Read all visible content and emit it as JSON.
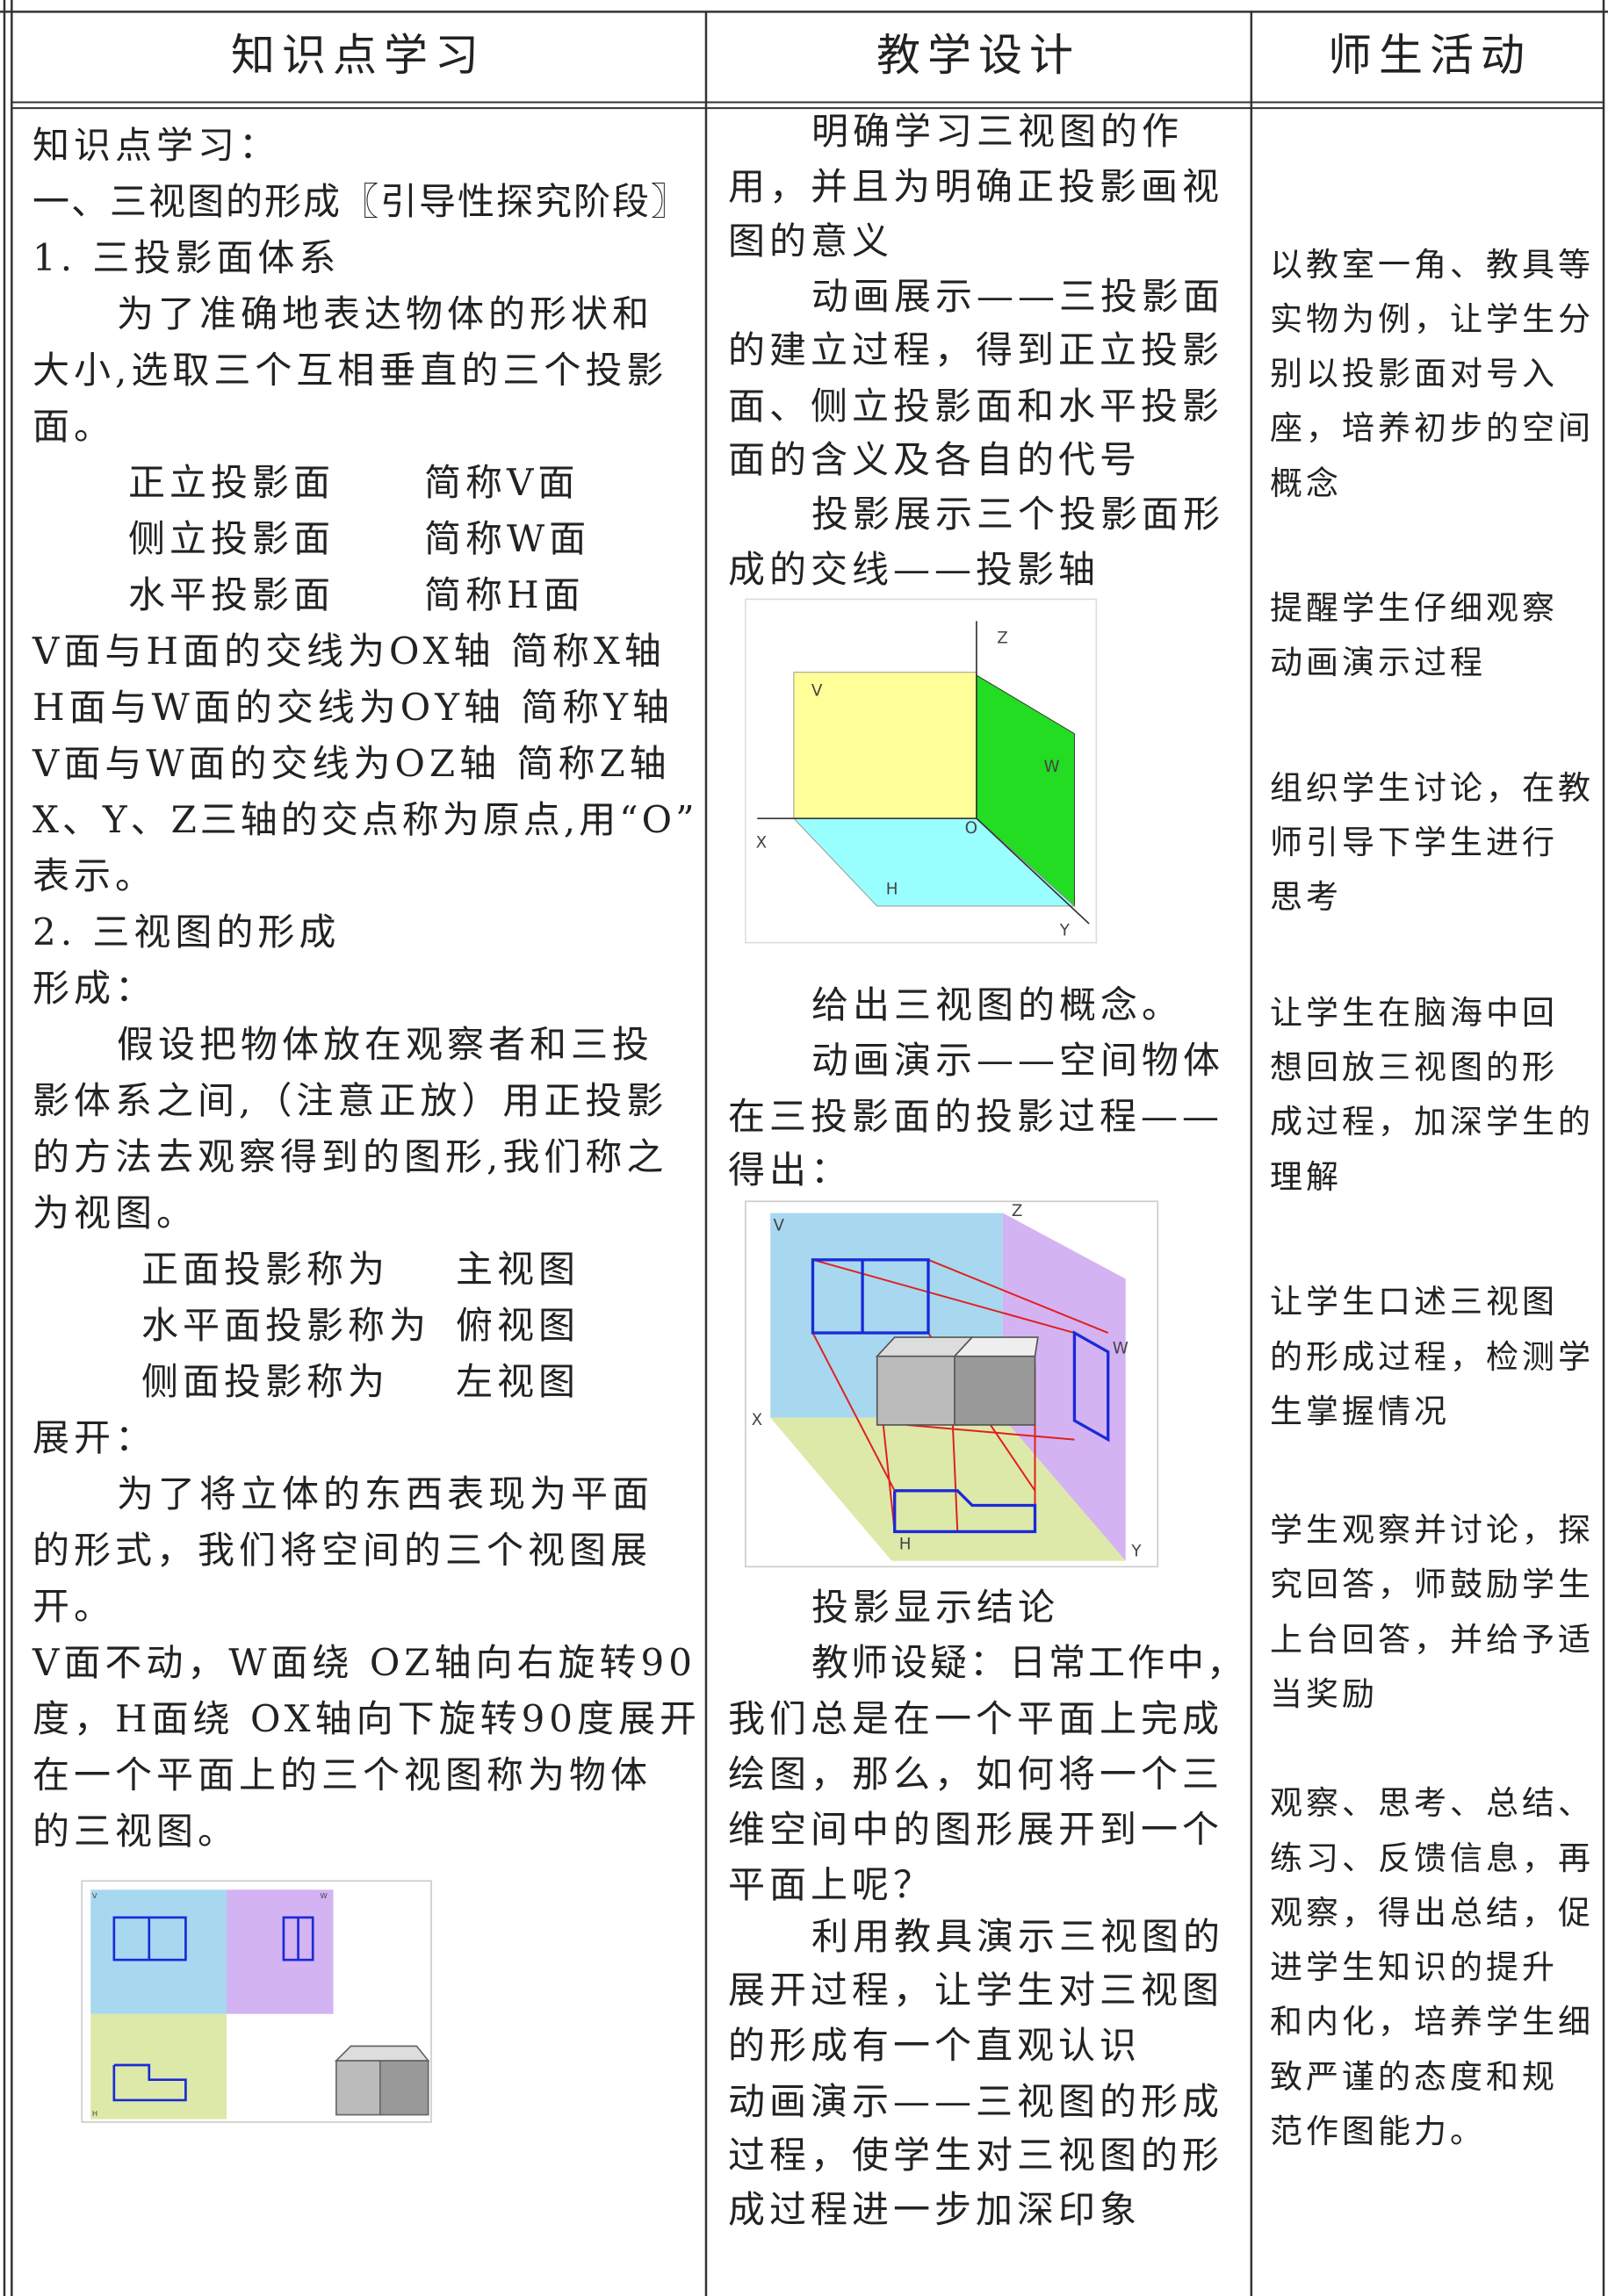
{
  "table": {
    "headers": [
      "知识点学习",
      "教学设计",
      "师生活动"
    ],
    "col1": [
      [
        "知识点学习："
      ],
      [
        "一、三视图的形成〖引导性探究阶段〗"
      ],
      [
        "1.  三投影面体系"
      ],
      [
        "为了准确地表达物体的形状和"
      ],
      [
        "大小,选取三个互相垂直的三个投影"
      ],
      [
        "面。"
      ],
      [
        "正立投影面",
        "简称V面"
      ],
      [
        "侧立投影面",
        "简称W面"
      ],
      [
        "水平投影面",
        "简称H面"
      ],
      [
        "V面与H面的交线为OX轴 简称X轴"
      ],
      [
        "H面与W面的交线为OY轴 简称Y轴"
      ],
      [
        "V面与W面的交线为OZ轴 简称Z轴"
      ],
      [
        "X、Y、Z三轴的交点称为原点,用“O”"
      ],
      [
        "表示。"
      ],
      [
        "2.  三视图的形成"
      ],
      [
        "形成："
      ],
      [
        "假设把物体放在观察者和三投"
      ],
      [
        "影体系之间,（注意正放）用正投影"
      ],
      [
        "的方法去观察得到的图形,我们称之"
      ],
      [
        "为视图。"
      ],
      [
        "正面投影称为",
        "主视图"
      ],
      [
        "水平面投影称为",
        "俯视图"
      ],
      [
        "侧面投影称为",
        "左视图"
      ],
      [
        "展开："
      ],
      [
        "为了将立体的东西表现为平面"
      ],
      [
        "的形式，我们将空间的三个视图展"
      ],
      [
        "开。"
      ],
      [
        "V面不动，W面绕 OZ轴向右旋转90"
      ],
      [
        "度，H面绕 OX轴向下旋转90度展开"
      ],
      [
        "在一个平面上的三个视图称为物体"
      ],
      [
        "的三视图。"
      ]
    ],
    "col2": [
      "明确学习三视图的作",
      "用，并且为明确正投影画视",
      "图的意义",
      "动画展示——三投影面",
      "的建立过程，得到正立投影",
      "面、侧立投影面和水平投影",
      "面的含义及各自的代号",
      "投影展示三个投影面形",
      "成的交线——投影轴",
      "给出三视图的概念。",
      "动画演示——空间物体",
      "在三投影面的投影过程——",
      "得出：",
      "投影显示结论",
      "教师设疑：日常工作中，",
      "我们总是在一个平面上完成",
      "绘图，那么，如何将一个三",
      "维空间中的图形展开到一个",
      "平面上呢？",
      "利用教具演示三视图的",
      "展开过程，让学生对三视图",
      "的形成有一个直观认识",
      "动画演示——三视图的形成",
      "过程，使学生对三视图的形",
      "成过程进一步加深印象"
    ],
    "col3": [
      [
        "以教室一角、教具等",
        "实物为例，让学生分",
        "别以投影面对号入",
        "座，培养初步的空间",
        "概念"
      ],
      [
        "提醒学生仔细观察",
        "动画演示过程"
      ],
      [
        "组织学生讨论，在教",
        "师引导下学生进行",
        "思考"
      ],
      [
        "让学生在脑海中回",
        "想回放三视图的形",
        "成过程，加深学生的",
        "理解"
      ],
      [
        "让学生口述三视图",
        "的形成过程，检测学",
        "生掌握情况"
      ],
      [
        "学生观察并讨论，探",
        "究回答，师鼓励学生",
        "上台回答，并给予适",
        "当奖励"
      ],
      [
        "观察、思考、总结、",
        "练习、反馈信息，再",
        "观察，得出总结，促",
        "进学生知识的提升",
        "和内化，培养学生细",
        "致严谨的态度和规",
        "范作图能力。"
      ]
    ],
    "figures": {
      "planes": [
        "Z",
        "V",
        "W",
        "X",
        "O",
        "H",
        "Y"
      ],
      "projection": [
        "V",
        "Z",
        "W",
        "X",
        "H",
        "Y"
      ],
      "unfolded": [
        "V",
        "W",
        "H"
      ]
    }
  }
}
